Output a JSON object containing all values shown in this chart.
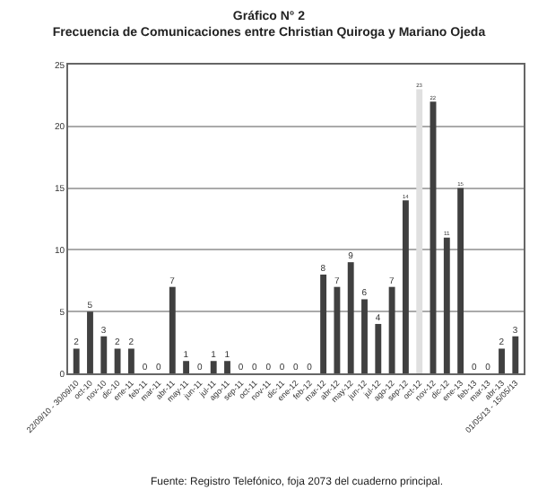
{
  "chart_data": {
    "type": "bar",
    "title": "Gráfico N° 2",
    "subtitle": "Frecuencia de Comunicaciones entre Christian Quiroga y Mariano Ojeda",
    "categories": [
      "22/09/10 - 30/09/10",
      "oct-10",
      "nov-10",
      "dic-10",
      "ene-11",
      "feb-11",
      "mar-11",
      "abr-11",
      "may-11",
      "jun-11",
      "jul-11",
      "ago-11",
      "sep-11",
      "oct-11",
      "nov-11",
      "dic-11",
      "ene-12",
      "feb-12",
      "mar-12",
      "abr-12",
      "may-12",
      "jun-12",
      "jul-12",
      "ago-12",
      "sep-12",
      "oct-12",
      "nov-12",
      "dic-12",
      "ene-13",
      "feb-13",
      "mar-13",
      "abr-13",
      "01/05/13 - 15/05/13"
    ],
    "values": [
      2,
      5,
      3,
      2,
      2,
      0,
      0,
      7,
      1,
      0,
      1,
      1,
      0,
      0,
      0,
      0,
      0,
      0,
      8,
      7,
      9,
      6,
      4,
      7,
      14,
      23,
      22,
      11,
      15,
      0,
      0,
      2,
      3
    ],
    "colors": [
      "#404040",
      "#404040",
      "#404040",
      "#404040",
      "#404040",
      "#404040",
      "#404040",
      "#404040",
      "#404040",
      "#404040",
      "#404040",
      "#404040",
      "#404040",
      "#404040",
      "#404040",
      "#404040",
      "#404040",
      "#404040",
      "#404040",
      "#404040",
      "#404040",
      "#404040",
      "#404040",
      "#404040",
      "#404040",
      "#e0e0e0",
      "#404040",
      "#404040",
      "#404040",
      "#404040",
      "#404040",
      "#404040",
      "#404040"
    ],
    "ylim": [
      0,
      25
    ],
    "yticks": [
      0,
      5,
      10,
      15,
      20,
      25
    ],
    "grid": "y",
    "data_labels": true,
    "annotations": [
      "Fuente: Registro Telefónico, foja 2073 del cuaderno principal."
    ]
  }
}
